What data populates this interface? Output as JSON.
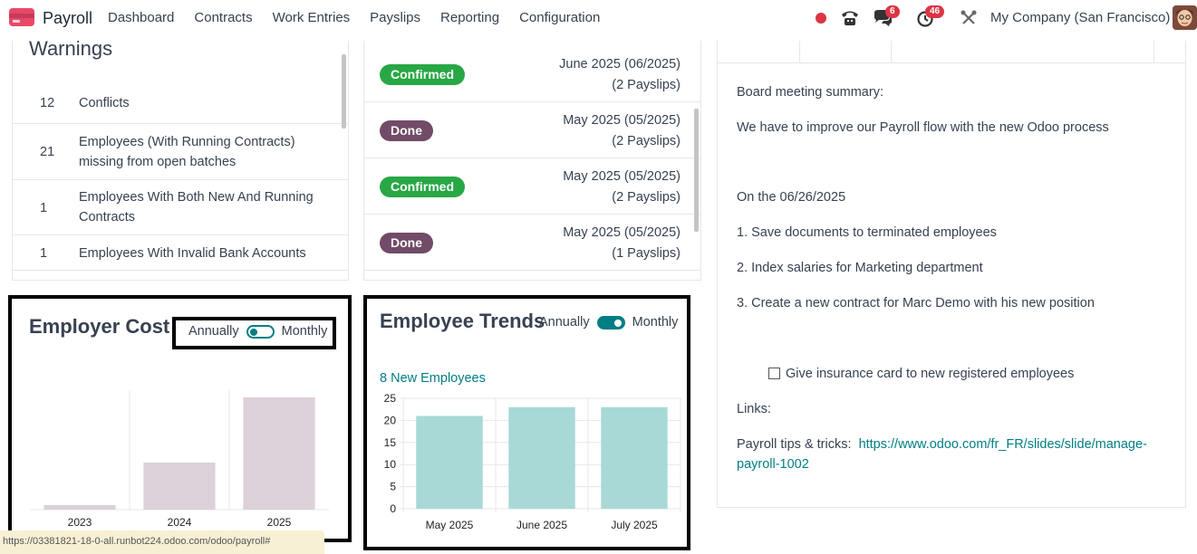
{
  "navbar": {
    "app_name": "Payroll",
    "menu": [
      "Dashboard",
      "Contracts",
      "Work Entries",
      "Payslips",
      "Reporting",
      "Configuration"
    ],
    "chat_badge": "6",
    "activity_badge": "46",
    "company": "My Company (San Francisco)",
    "colors": {
      "record": "#dc3545",
      "badge": "#dc3545"
    }
  },
  "warnings": {
    "title": "Warnings",
    "rows": [
      {
        "count": "12",
        "label": "Conflicts"
      },
      {
        "count": "21",
        "label": "Employees (With Running Contracts) missing from open batches"
      },
      {
        "count": "1",
        "label": "Employees With Both New And Running Contracts"
      },
      {
        "count": "1",
        "label": "Employees With Invalid Bank Accounts"
      }
    ]
  },
  "batches": {
    "rows": [
      {
        "state": "Confirmed",
        "name": "June 2025 (06/2025)",
        "count": "(2 Payslips)"
      },
      {
        "state": "Done",
        "name": "May 2025 (05/2025)",
        "count": "(2 Payslips)"
      },
      {
        "state": "Confirmed",
        "name": "May 2025 (05/2025)",
        "count": "(2 Payslips)"
      },
      {
        "state": "Done",
        "name": "May 2025 (05/2025)",
        "count": "(1 Payslips)"
      }
    ],
    "colors": {
      "confirmed": "#28a745",
      "done": "#714b67"
    }
  },
  "note": {
    "line1": "Board meeting summary:",
    "line2": "We have to improve our Payroll flow with the new Odoo process",
    "line3": "On the 06/26/2025",
    "item1": "1. Save documents to terminated employees",
    "item2": "2. Index salaries for Marketing department",
    "item3": "3. Create a new contract for Marc Demo with his new position",
    "checkbox_label": "Give insurance card to new registered employees",
    "links_label": "Links:",
    "tips_label": "Payroll tips & tricks:",
    "tips_link_1": "https://www.odoo.com/fr_FR/slides/slide/manage-",
    "tips_link_2": "payroll-1002"
  },
  "employer_cost": {
    "title": "Employer Cost",
    "toggle_left": "Annually",
    "toggle_right": "Monthly"
  },
  "employee_trends": {
    "title": "Employee Trends",
    "toggle_left": "Annually",
    "toggle_right": "Monthly",
    "new_employees": "8 New Employees"
  },
  "statusbar": {
    "url": "https://03381821-18-0-all.runbot224.odoo.com/odoo/payroll#"
  },
  "chart_data": [
    {
      "type": "bar",
      "title": "Employer Cost",
      "categories": [
        "2023",
        "2024",
        "2025"
      ],
      "values": [
        4,
        42,
        100
      ],
      "ylim": [
        0,
        100
      ],
      "color": "#dcd1d9",
      "grid": false
    },
    {
      "type": "bar",
      "title": "Employee Trends",
      "categories": [
        "May 2025",
        "June 2025",
        "July 2025"
      ],
      "values": [
        21,
        23,
        23
      ],
      "yticks": [
        0,
        5,
        10,
        15,
        20,
        25
      ],
      "ylim": [
        0,
        25
      ],
      "color": "#a8d9d6",
      "grid": true
    }
  ]
}
